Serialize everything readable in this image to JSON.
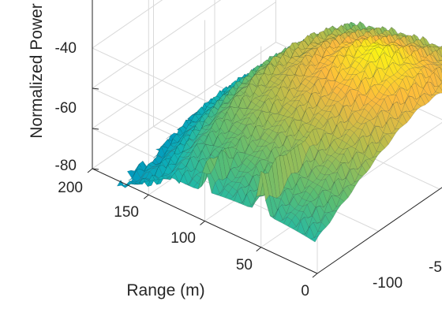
{
  "chart_data": {
    "type": "surface",
    "title": "",
    "zlabel": "Normalized Power",
    "ylabel": "Range (m)",
    "xlabel": "",
    "z_ticks": [
      "-80",
      "-60",
      "-40"
    ],
    "range_ticks": [
      "0",
      "50",
      "100",
      "150",
      "200"
    ],
    "x_ticks": [
      "-100",
      "-5"
    ],
    "zlim": [
      -80,
      -20
    ],
    "range_lim": [
      0,
      200
    ],
    "grid": true,
    "colormap": "parula",
    "ridges": [
      {
        "name": "",
        "range_m": 100,
        "peak_level": -45
      },
      {
        "name": "",
        "range_m": 50,
        "peak_level": -40
      }
    ],
    "peak": {
      "range_m": 50,
      "level": -20
    }
  }
}
